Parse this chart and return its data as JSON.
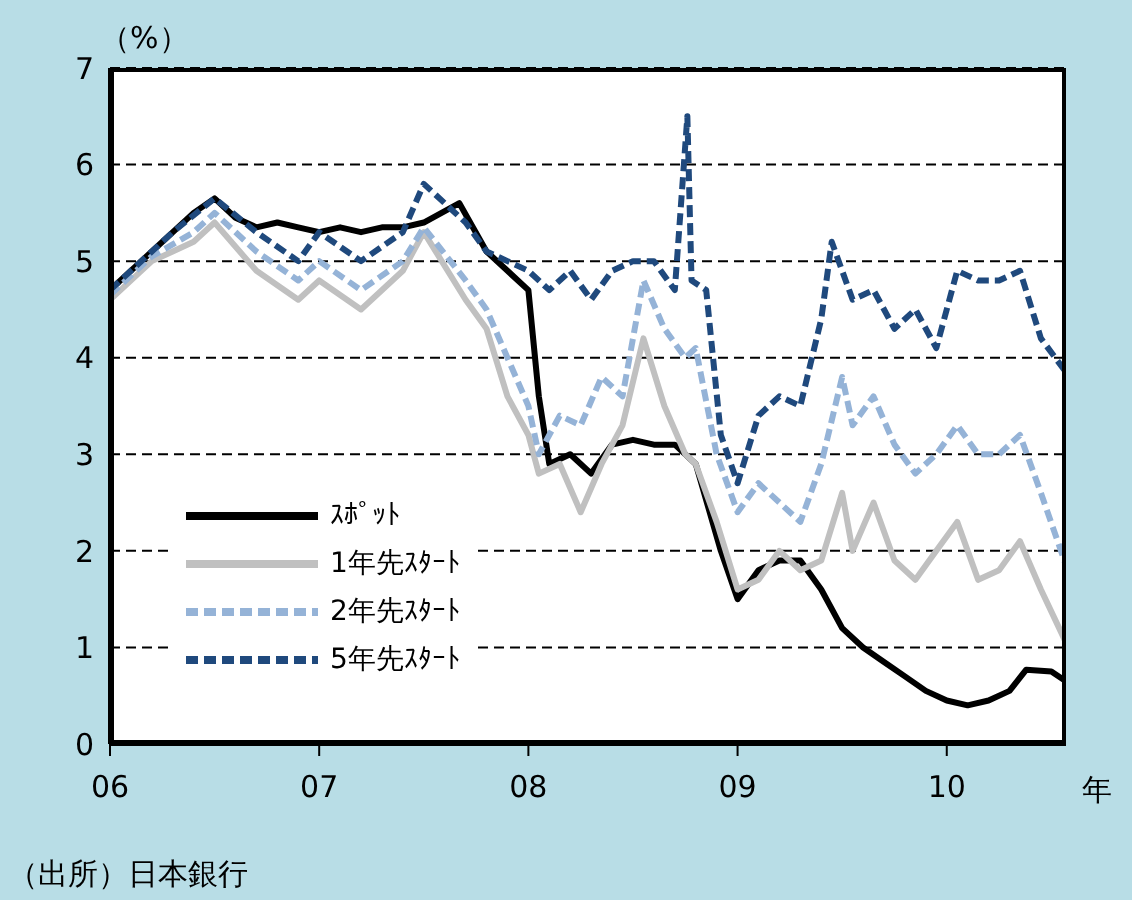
{
  "chart_data": {
    "type": "line",
    "ylabel": "（%）",
    "xlabel": "年",
    "annotations": [
      "（出所）日本銀行"
    ],
    "xlim": [
      2006,
      2010.57
    ],
    "xticks": [
      {
        "value": 2006,
        "label": "06"
      },
      {
        "value": 2007,
        "label": "07"
      },
      {
        "value": 2008,
        "label": "08"
      },
      {
        "value": 2009,
        "label": "09"
      },
      {
        "value": 2010,
        "label": "10"
      }
    ],
    "ylim": [
      0,
      7
    ],
    "yticks": [
      0,
      1,
      2,
      3,
      4,
      5,
      6,
      7
    ],
    "grid": "y",
    "legend": "bottom left",
    "marker": "none",
    "series": [
      {
        "name": "ｽﾎﾟｯﾄ",
        "color": "#000000",
        "line_style": "solid",
        "x": [
          2006,
          2006.2,
          2006.4,
          2006.5,
          2006.6,
          2006.7,
          2006.8,
          2006.9,
          2007,
          2007.1,
          2007.2,
          2007.3,
          2007.4,
          2007.5,
          2007.67,
          2007.8,
          2007.9,
          2008,
          2008.05,
          2008.1,
          2008.2,
          2008.3,
          2008.4,
          2008.5,
          2008.6,
          2008.7,
          2008.8,
          2008.92,
          2009,
          2009.1,
          2009.2,
          2009.3,
          2009.4,
          2009.5,
          2009.6,
          2009.7,
          2009.8,
          2009.9,
          2010,
          2010.1,
          2010.2,
          2010.3,
          2010.38,
          2010.5,
          2010.57
        ],
        "values": [
          4.7,
          5.1,
          5.5,
          5.65,
          5.45,
          5.35,
          5.4,
          5.35,
          5.3,
          5.35,
          5.3,
          5.35,
          5.35,
          5.4,
          5.6,
          5.1,
          4.9,
          4.7,
          3.6,
          2.9,
          3.0,
          2.8,
          3.1,
          3.15,
          3.1,
          3.1,
          2.9,
          2.0,
          1.5,
          1.8,
          1.9,
          1.9,
          1.6,
          1.2,
          1.0,
          0.85,
          0.7,
          0.55,
          0.45,
          0.4,
          0.45,
          0.55,
          0.77,
          0.75,
          0.65
        ]
      },
      {
        "name": "1年先ｽﾀｰﾄ",
        "color": "#c0c0c0",
        "line_style": "solid",
        "x": [
          2006,
          2006.2,
          2006.4,
          2006.5,
          2006.7,
          2006.9,
          2007,
          2007.2,
          2007.4,
          2007.5,
          2007.7,
          2007.8,
          2007.9,
          2008,
          2008.05,
          2008.15,
          2008.25,
          2008.35,
          2008.45,
          2008.55,
          2008.65,
          2008.75,
          2008.8,
          2008.9,
          2009,
          2009.1,
          2009.2,
          2009.3,
          2009.4,
          2009.5,
          2009.55,
          2009.65,
          2009.75,
          2009.85,
          2009.95,
          2010.05,
          2010.15,
          2010.25,
          2010.35,
          2010.45,
          2010.57
        ],
        "values": [
          4.6,
          5.0,
          5.2,
          5.4,
          4.9,
          4.6,
          4.8,
          4.5,
          4.9,
          5.3,
          4.6,
          4.3,
          3.6,
          3.2,
          2.8,
          2.9,
          2.4,
          2.9,
          3.3,
          4.2,
          3.5,
          3.0,
          2.9,
          2.3,
          1.6,
          1.7,
          2.0,
          1.8,
          1.9,
          2.6,
          2.0,
          2.5,
          1.9,
          1.7,
          2.0,
          2.3,
          1.7,
          1.8,
          2.1,
          1.6,
          1.05
        ]
      },
      {
        "name": "2年先ｽﾀｰﾄ",
        "color": "#95b3d7",
        "line_style": "dashed",
        "x": [
          2006,
          2006.2,
          2006.4,
          2006.5,
          2006.7,
          2006.9,
          2007,
          2007.2,
          2007.4,
          2007.5,
          2007.7,
          2007.8,
          2007.9,
          2008,
          2008.05,
          2008.15,
          2008.25,
          2008.35,
          2008.45,
          2008.55,
          2008.65,
          2008.75,
          2008.8,
          2008.9,
          2009,
          2009.1,
          2009.2,
          2009.3,
          2009.4,
          2009.5,
          2009.55,
          2009.65,
          2009.75,
          2009.85,
          2009.95,
          2010.05,
          2010.15,
          2010.25,
          2010.35,
          2010.45,
          2010.57
        ],
        "values": [
          4.65,
          5.05,
          5.3,
          5.5,
          5.1,
          4.8,
          5.0,
          4.7,
          5.0,
          5.35,
          4.8,
          4.5,
          4.0,
          3.5,
          3.0,
          3.4,
          3.3,
          3.8,
          3.6,
          4.8,
          4.3,
          4.0,
          4.1,
          3.0,
          2.4,
          2.7,
          2.5,
          2.3,
          2.9,
          3.8,
          3.3,
          3.6,
          3.1,
          2.8,
          3.0,
          3.3,
          3.0,
          3.0,
          3.2,
          2.6,
          1.85
        ]
      },
      {
        "name": "5年先ｽﾀｰﾄ",
        "color": "#1f497d",
        "line_style": "dashed",
        "x": [
          2006,
          2006.3,
          2006.5,
          2006.7,
          2006.9,
          2007,
          2007.2,
          2007.4,
          2007.5,
          2007.7,
          2007.8,
          2007.9,
          2008,
          2008.1,
          2008.2,
          2008.3,
          2008.4,
          2008.5,
          2008.6,
          2008.7,
          2008.76,
          2008.78,
          2008.85,
          2008.92,
          2009,
          2009.1,
          2009.2,
          2009.3,
          2009.4,
          2009.45,
          2009.55,
          2009.65,
          2009.75,
          2009.85,
          2009.95,
          2010.05,
          2010.15,
          2010.25,
          2010.35,
          2010.45,
          2010.57
        ],
        "values": [
          4.7,
          5.3,
          5.65,
          5.3,
          5.0,
          5.3,
          5.0,
          5.3,
          5.8,
          5.4,
          5.1,
          5.0,
          4.9,
          4.7,
          4.9,
          4.6,
          4.9,
          5.0,
          5.0,
          4.7,
          6.5,
          4.8,
          4.7,
          3.2,
          2.7,
          3.4,
          3.6,
          3.5,
          4.4,
          5.2,
          4.6,
          4.7,
          4.3,
          4.5,
          4.1,
          4.9,
          4.8,
          4.8,
          4.9,
          4.2,
          3.85
        ]
      }
    ]
  }
}
